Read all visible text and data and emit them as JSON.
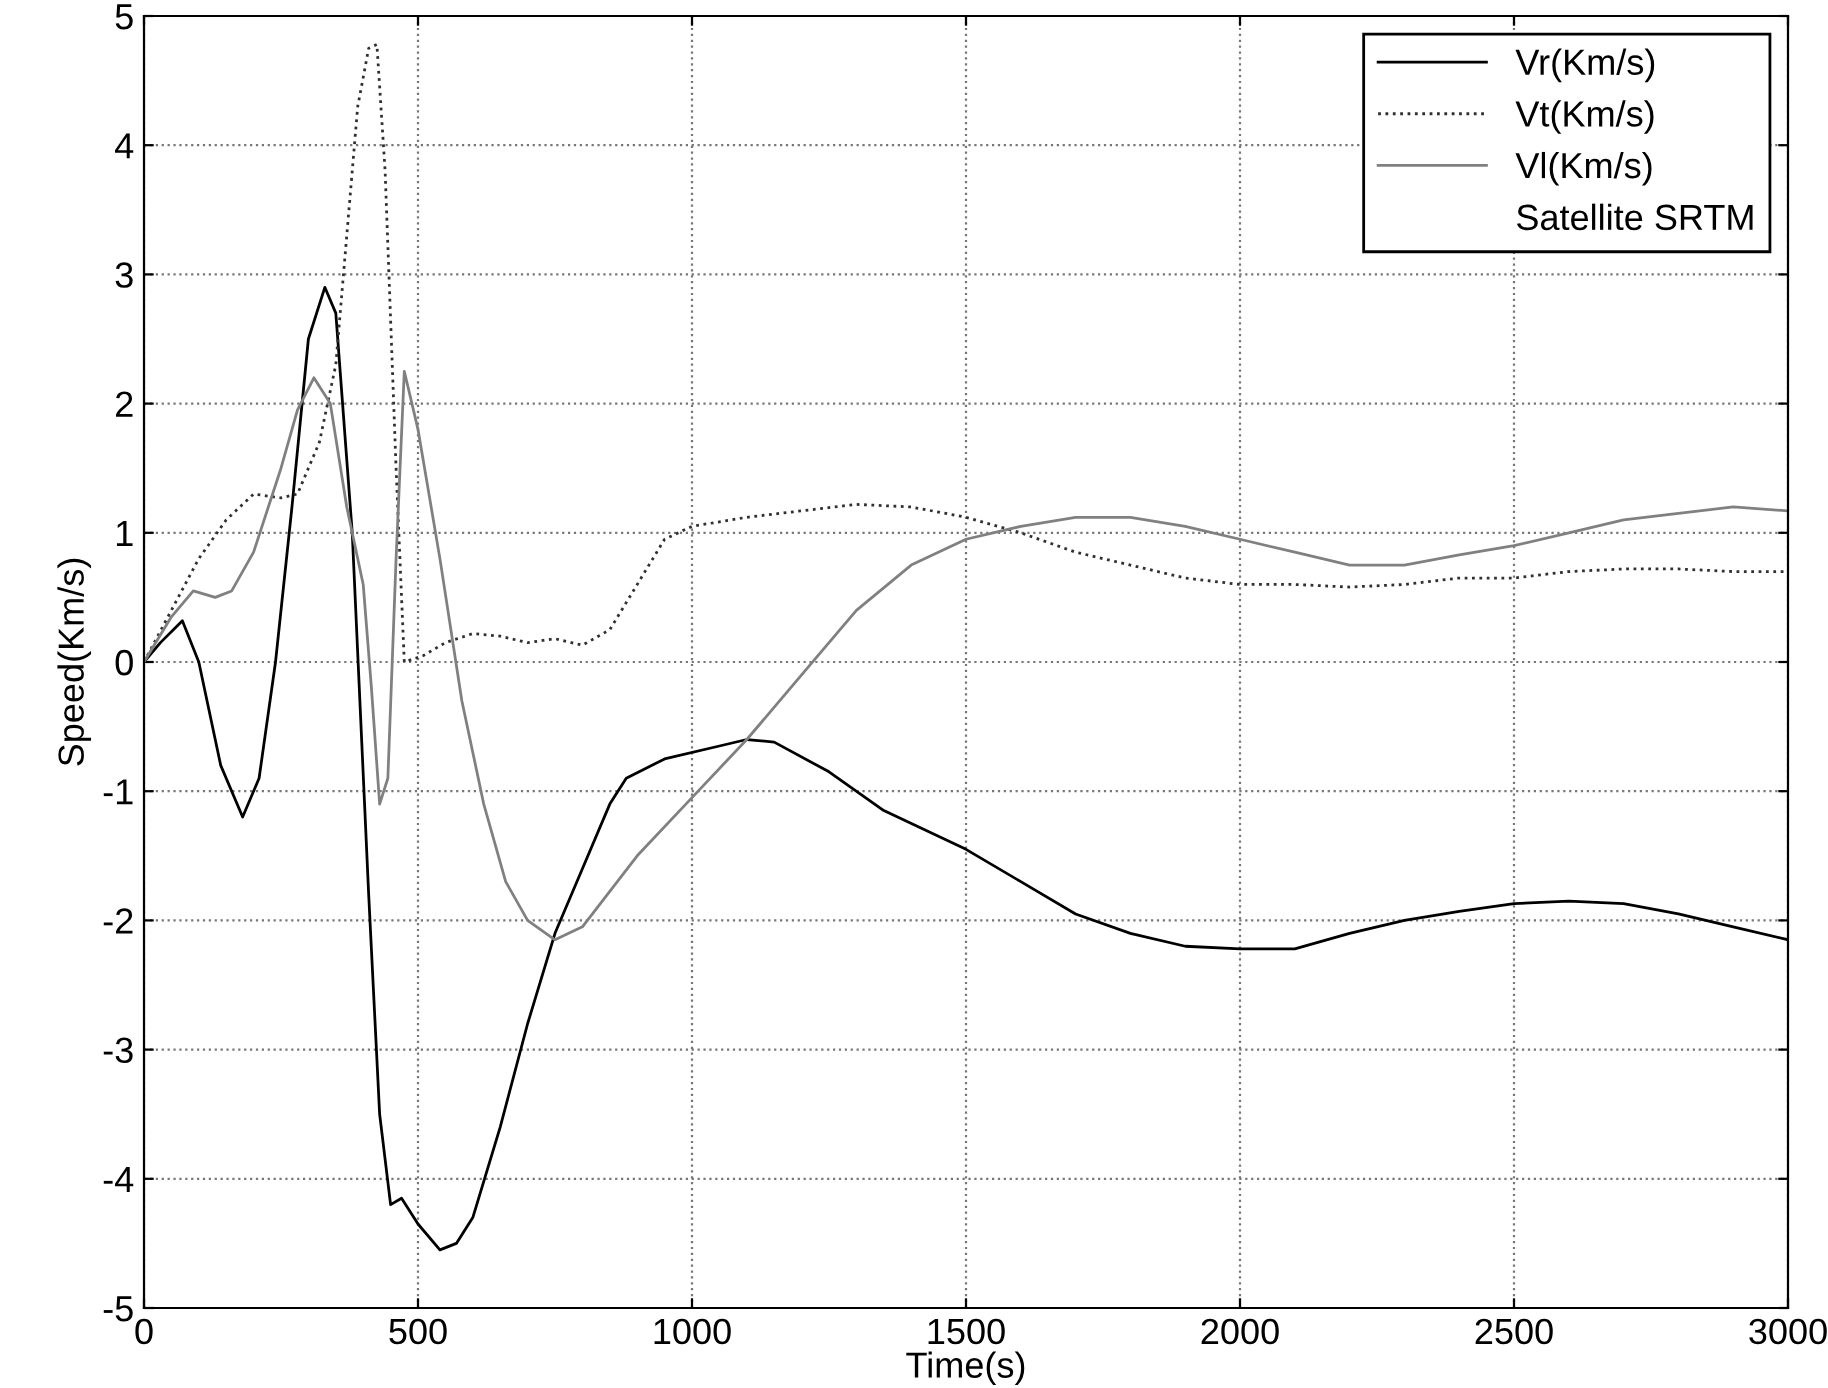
{
  "chart_data": {
    "type": "line",
    "xlabel": "Time(s)",
    "ylabel": "Speed(Km/s)",
    "xlim": [
      0,
      3000
    ],
    "xticks": [
      0,
      500,
      1000,
      1500,
      2000,
      2500,
      3000
    ],
    "ylim": [
      -5,
      5
    ],
    "yticks": [
      -5,
      -4,
      -3,
      -2,
      -1,
      0,
      1,
      2,
      3,
      4,
      5
    ],
    "grid": true,
    "legend": "top right",
    "annotations": [
      "Satellite SRTM"
    ],
    "series": [
      {
        "name": "Vr(Km/s)",
        "color": "#000000",
        "line_style": "solid",
        "x": [
          0,
          30,
          70,
          100,
          140,
          180,
          210,
          240,
          270,
          300,
          330,
          350,
          380,
          410,
          430,
          450,
          470,
          500,
          540,
          570,
          600,
          650,
          700,
          750,
          800,
          850,
          880,
          950,
          1050,
          1100,
          1150,
          1250,
          1350,
          1500,
          1600,
          1700,
          1800,
          1900,
          2000,
          2100,
          2200,
          2300,
          2400,
          2500,
          2600,
          2700,
          2800,
          2900,
          3000
        ],
        "values": [
          0,
          0.15,
          0.32,
          0,
          -0.8,
          -1.2,
          -0.9,
          0,
          1.2,
          2.5,
          2.9,
          2.7,
          1.0,
          -1.8,
          -3.5,
          -4.2,
          -4.15,
          -4.35,
          -4.55,
          -4.5,
          -4.3,
          -3.6,
          -2.8,
          -2.1,
          -1.6,
          -1.1,
          -0.9,
          -0.75,
          -0.65,
          -0.6,
          -0.62,
          -0.85,
          -1.15,
          -1.45,
          -1.7,
          -1.95,
          -2.1,
          -2.2,
          -2.22,
          -2.22,
          -2.1,
          -2.0,
          -1.93,
          -1.87,
          -1.85,
          -1.87,
          -1.95,
          -2.05,
          -2.15
        ]
      },
      {
        "name": "Vt(Km/s)",
        "color": "#303030",
        "line_style": "dotted",
        "x": [
          0,
          50,
          100,
          150,
          200,
          250,
          280,
          320,
          350,
          370,
          390,
          410,
          425,
          440,
          460,
          475,
          510,
          550,
          600,
          650,
          700,
          750,
          800,
          850,
          900,
          950,
          1000,
          1100,
          1200,
          1300,
          1400,
          1500,
          1600,
          1700,
          1800,
          1900,
          2000,
          2100,
          2200,
          2300,
          2400,
          2500,
          2600,
          2700,
          2800,
          2900,
          3000
        ],
        "values": [
          0,
          0.4,
          0.8,
          1.1,
          1.3,
          1.27,
          1.3,
          1.7,
          2.3,
          3.3,
          4.3,
          4.75,
          4.78,
          3.8,
          1.5,
          0,
          0.05,
          0.15,
          0.22,
          0.2,
          0.15,
          0.18,
          0.13,
          0.25,
          0.6,
          0.95,
          1.05,
          1.12,
          1.17,
          1.22,
          1.2,
          1.12,
          1.0,
          0.85,
          0.75,
          0.65,
          0.6,
          0.6,
          0.58,
          0.6,
          0.65,
          0.65,
          0.7,
          0.72,
          0.72,
          0.7,
          0.7
        ]
      },
      {
        "name": "Vl(Km/s)",
        "color": "#808080",
        "line_style": "solid",
        "x": [
          0,
          50,
          90,
          130,
          160,
          200,
          250,
          280,
          310,
          340,
          370,
          400,
          415,
          430,
          445,
          460,
          475,
          500,
          540,
          580,
          620,
          660,
          700,
          750,
          800,
          900,
          1000,
          1100,
          1200,
          1300,
          1400,
          1500,
          1600,
          1700,
          1800,
          1900,
          2000,
          2100,
          2200,
          2300,
          2400,
          2500,
          2600,
          2700,
          2800,
          2900,
          3000
        ],
        "values": [
          0,
          0.35,
          0.55,
          0.5,
          0.55,
          0.85,
          1.5,
          1.95,
          2.2,
          2.0,
          1.2,
          0.6,
          -0.2,
          -1.1,
          -0.9,
          0.8,
          2.25,
          1.8,
          0.8,
          -0.3,
          -1.1,
          -1.7,
          -2.0,
          -2.15,
          -2.05,
          -1.5,
          -1.05,
          -0.6,
          -0.1,
          0.4,
          0.75,
          0.95,
          1.05,
          1.12,
          1.12,
          1.05,
          0.95,
          0.85,
          0.75,
          0.75,
          0.83,
          0.9,
          1.0,
          1.1,
          1.15,
          1.2,
          1.17
        ]
      }
    ]
  }
}
